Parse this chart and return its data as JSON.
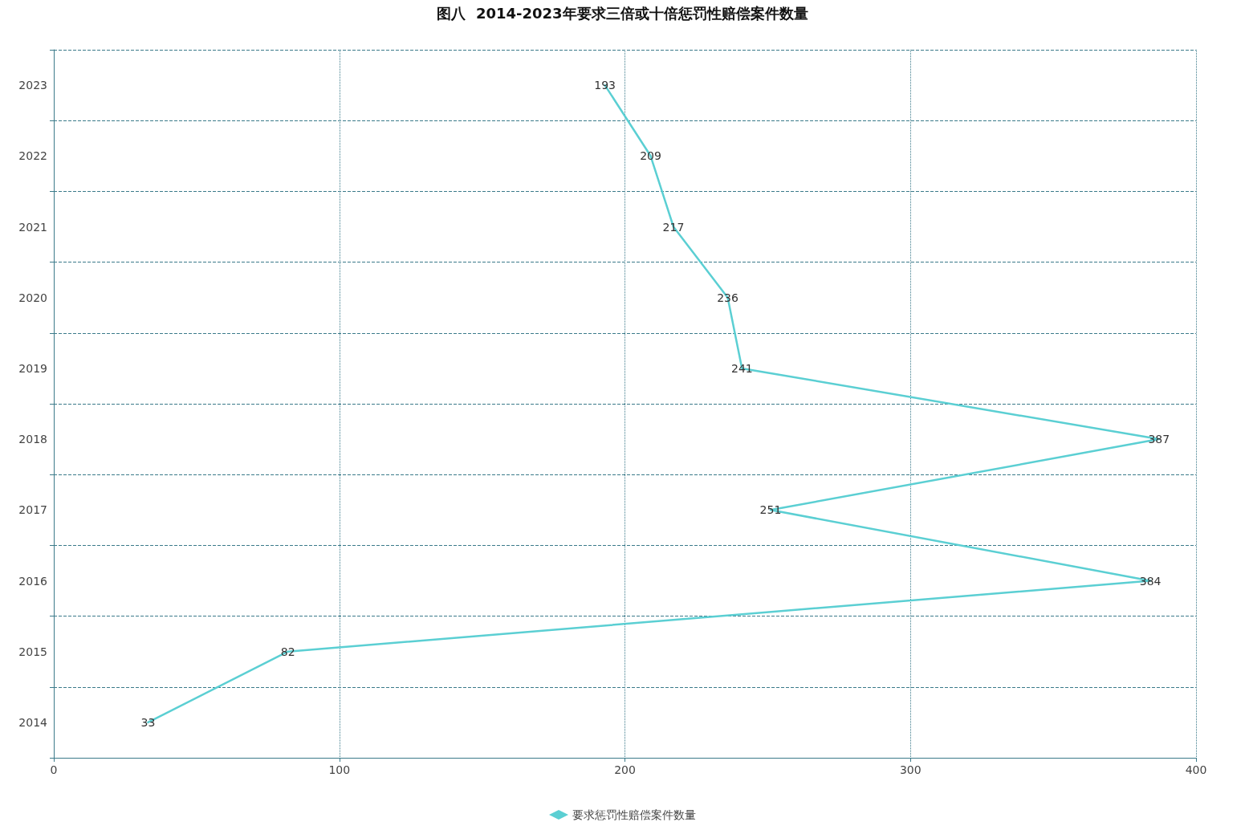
{
  "chart_data": {
    "type": "line",
    "orientation": "horizontal",
    "title": "图八  2014-2023年要求三倍或十倍惩罚性赔偿案件数量",
    "categories": [
      "2023",
      "2022",
      "2021",
      "2020",
      "2019",
      "2018",
      "2017",
      "2016",
      "2015",
      "2014"
    ],
    "series": [
      {
        "name": "要求惩罚性赔偿案件数量",
        "color": "#5bcfd3",
        "values": [
          193,
          209,
          217,
          236,
          241,
          387,
          251,
          384,
          82,
          33
        ]
      }
    ],
    "xlim": [
      0,
      400
    ],
    "xticks": [
      0,
      100,
      200,
      300,
      400
    ],
    "grid": true,
    "legend": "bottom",
    "data_labels": true,
    "marker": "none",
    "line_style": "solid"
  }
}
